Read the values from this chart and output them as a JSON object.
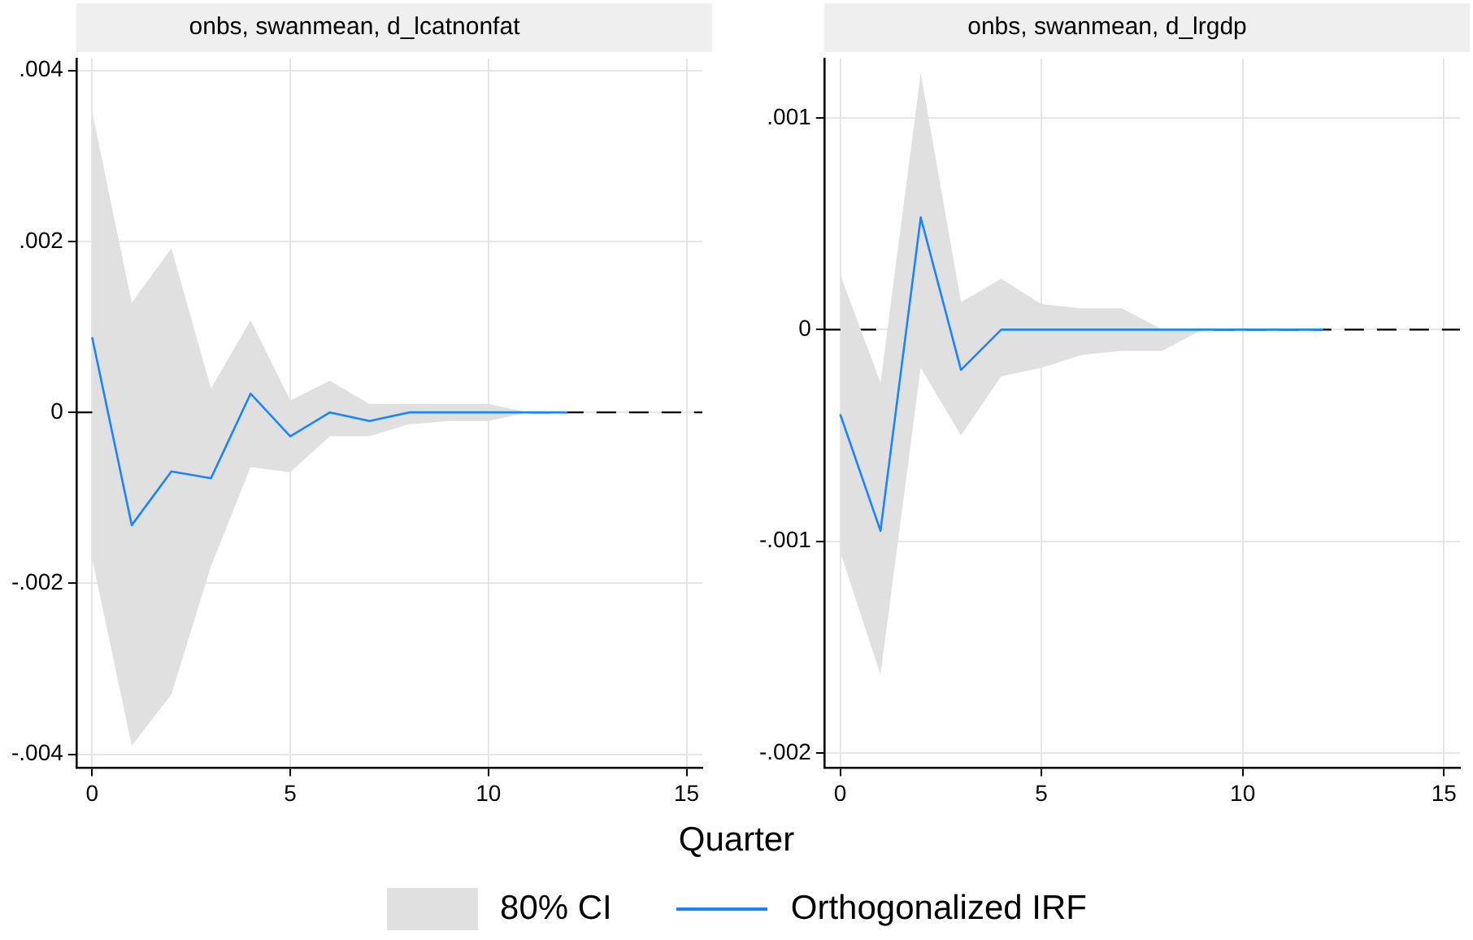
{
  "chart_data": [
    {
      "type": "line",
      "title": "onbs, swanmean, d_lcatnonfat",
      "xlabel": "Quarter",
      "legend": "bottom",
      "grid": true,
      "annotations": [
        "80% CI"
      ],
      "xlim": [
        -0.4,
        15.4
      ],
      "xticks": [
        0,
        5,
        10,
        15
      ],
      "ylim": [
        -0.00416,
        0.00414
      ],
      "yticks": [
        {
          "value": -0.004,
          "label": "-.004"
        },
        {
          "value": -0.002,
          "label": "-.002"
        },
        0,
        {
          "value": 0.002,
          "label": ".002"
        },
        {
          "value": 0.004,
          "label": ".004"
        }
      ],
      "ref_lines": [
        {
          "axis": "y",
          "value": 0,
          "color": "#000000",
          "line_style": "dashed"
        }
      ],
      "series": [
        {
          "name": "Orthogonalized IRF",
          "color": "#1a85ff",
          "x": [
            0,
            1,
            2,
            3,
            4,
            5,
            6,
            7,
            8,
            9,
            10,
            11,
            12
          ],
          "values": [
            0.00088,
            -0.00132,
            -0.00069,
            -0.00077,
            0.00022,
            -0.00028,
            0,
            -0.0001,
            0,
            0,
            0,
            0,
            0
          ],
          "lower": [
            -0.00171,
            -0.0039,
            -0.0033,
            -0.0018,
            -0.00064,
            -0.0007,
            -0.00028,
            -0.00028,
            -0.00014,
            -0.0001,
            -0.0001,
            0,
            0
          ],
          "upper": [
            0.00352,
            0.00128,
            0.00192,
            0.00028,
            0.00108,
            0.00014,
            0.00037,
            0.0001,
            0.0001,
            0.0001,
            0.0001,
            0,
            0
          ]
        }
      ]
    },
    {
      "type": "line",
      "title": "onbs, swanmean, d_lrgdp",
      "grid": true,
      "xlim": [
        -0.4,
        15.4
      ],
      "xticks": [
        0,
        5,
        10,
        15
      ],
      "ylim": [
        -0.00207,
        0.00128
      ],
      "yticks": [
        {
          "value": -0.002,
          "label": "-.002"
        },
        {
          "value": -0.001,
          "label": "-.001"
        },
        0,
        {
          "value": 0.001,
          "label": ".001"
        }
      ],
      "ref_lines": [
        {
          "axis": "y",
          "value": 0,
          "color": "#000000",
          "line_style": "dashed"
        }
      ],
      "series": [
        {
          "color": "#1a85ff",
          "x": [
            0,
            1,
            2,
            3,
            4,
            5,
            6,
            7,
            8,
            9,
            10,
            11,
            12
          ],
          "values": [
            -0.0004,
            -0.00095,
            0.00053,
            -0.00019,
            0,
            0,
            0,
            0,
            0,
            0,
            0,
            0,
            0
          ],
          "lower": [
            -0.00105,
            -0.00163,
            -0.00018,
            -0.0005,
            -0.00022,
            -0.00018,
            -0.00012,
            -0.0001,
            -0.0001,
            0,
            0,
            0,
            0
          ],
          "upper": [
            0.00026,
            -0.00025,
            0.00121,
            0.00013,
            0.00024,
            0.00012,
            0.0001,
            0.0001,
            0,
            0,
            0,
            0,
            0
          ]
        }
      ]
    }
  ]
}
